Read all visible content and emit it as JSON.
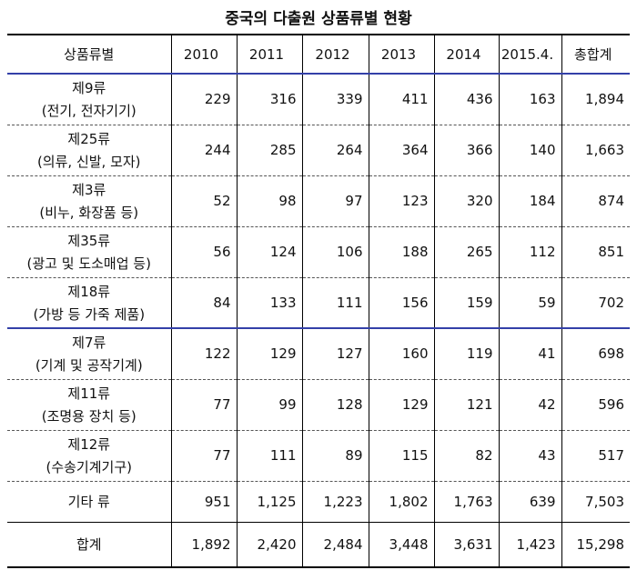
{
  "title": "중국의 다출원 상품류별 현황",
  "table": {
    "header": [
      "상품류별",
      "2010",
      "2011",
      "2012",
      "2013",
      "2014",
      "2015.4.",
      "총합계"
    ],
    "rows": [
      {
        "name": "제9류",
        "sub": "(전기, 전자기기)",
        "cells": [
          "229",
          "316",
          "339",
          "411",
          "436",
          "163",
          "1,894"
        ]
      },
      {
        "name": "제25류",
        "sub": "(의류, 신발, 모자)",
        "cells": [
          "244",
          "285",
          "264",
          "364",
          "366",
          "140",
          "1,663"
        ]
      },
      {
        "name": "제3류",
        "sub": "(비누, 화장품 등)",
        "cells": [
          "52",
          "98",
          "97",
          "123",
          "320",
          "184",
          "874"
        ]
      },
      {
        "name": "제35류",
        "sub": "(광고 및 도소매업 등)",
        "cells": [
          "56",
          "124",
          "106",
          "188",
          "265",
          "112",
          "851"
        ]
      },
      {
        "name": "제18류",
        "sub": "(가방 등 가죽 제품)",
        "cells": [
          "84",
          "133",
          "111",
          "156",
          "159",
          "59",
          "702"
        ]
      },
      {
        "name": "제7류",
        "sub": "(기계 및 공작기계)",
        "cells": [
          "122",
          "129",
          "127",
          "160",
          "119",
          "41",
          "698"
        ]
      },
      {
        "name": "제11류",
        "sub": "(조명용 장치 등)",
        "cells": [
          "77",
          "99",
          "128",
          "129",
          "121",
          "42",
          "596"
        ]
      },
      {
        "name": "제12류",
        "sub": "(수송기계기구)",
        "cells": [
          "77",
          "111",
          "89",
          "115",
          "82",
          "43",
          "517"
        ]
      },
      {
        "name": "기타 류",
        "cells": [
          "951",
          "1,125",
          "1,223",
          "1,802",
          "1,763",
          "639",
          "7,503"
        ]
      },
      {
        "name": "합계",
        "cells": [
          "1,892",
          "2,420",
          "2,484",
          "3,448",
          "3,631",
          "1,423",
          "15,298"
        ]
      }
    ]
  }
}
